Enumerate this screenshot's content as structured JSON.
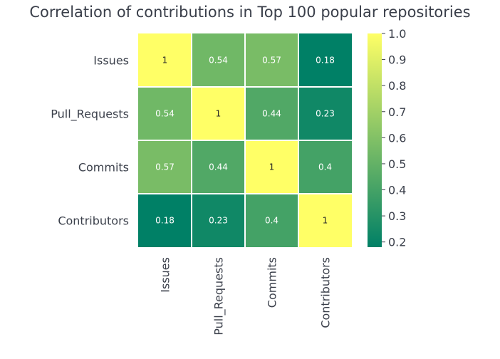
{
  "chart_data": {
    "type": "heatmap",
    "title": "Correlation of contributions in Top 100 popular repositories",
    "xlabel": "",
    "ylabel": "",
    "row_labels": [
      "Issues",
      "Pull_Requests",
      "Commits",
      "Contributors"
    ],
    "col_labels": [
      "Issues",
      "Pull_Requests",
      "Commits",
      "Contributors"
    ],
    "values": [
      [
        1,
        0.54,
        0.57,
        0.18
      ],
      [
        0.54,
        1,
        0.44,
        0.23
      ],
      [
        0.57,
        0.44,
        1,
        0.4
      ],
      [
        0.18,
        0.23,
        0.4,
        1
      ]
    ],
    "value_labels": [
      [
        "1",
        "0.54",
        "0.57",
        "0.18"
      ],
      [
        "0.54",
        "1",
        "0.44",
        "0.23"
      ],
      [
        "0.57",
        "0.44",
        "1",
        "0.4"
      ],
      [
        "0.18",
        "0.23",
        "0.4",
        "1"
      ]
    ],
    "colormap": "summer",
    "colormap_colors": [
      "#008066",
      "#ffff66"
    ],
    "grid_line_color": "#ffffff",
    "colorbar": {
      "range": [
        0.18,
        1.0
      ],
      "ticks": [
        0.2,
        0.3,
        0.4,
        0.5,
        0.6,
        0.7,
        0.8,
        0.9,
        1.0
      ],
      "tick_labels": [
        "0.2",
        "0.3",
        "0.4",
        "0.5",
        "0.6",
        "0.7",
        "0.8",
        "0.9",
        "1.0"
      ]
    }
  }
}
